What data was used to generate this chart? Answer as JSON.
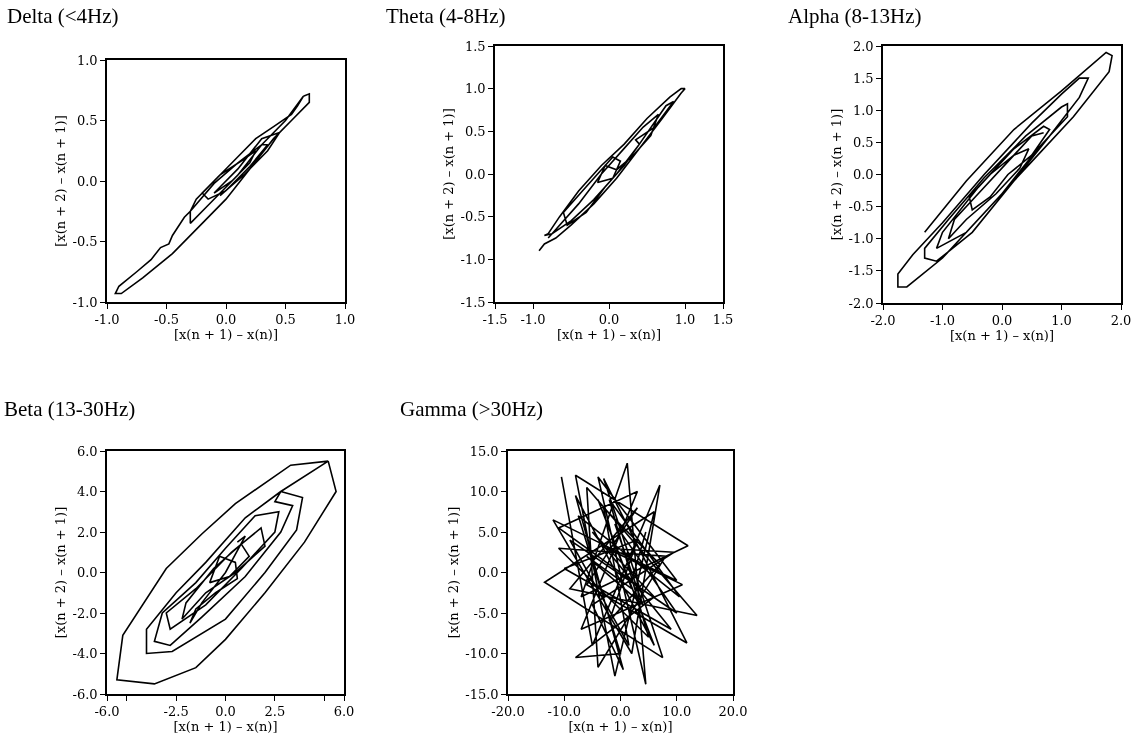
{
  "chart_data": [
    {
      "type": "line",
      "title": "Delta (<4Hz)",
      "xlabel": "[x(n + 1) – x(n)]",
      "ylabel": "[x(n + 2) – x(n + 1)]",
      "color": "#000000",
      "x": [
        0.65,
        0.7,
        0.7,
        0.55,
        0.4,
        0.2,
        0,
        -0.2,
        -0.45,
        -0.7,
        -0.88,
        -0.93,
        -0.9,
        -0.75,
        -0.63,
        -0.55,
        -0.48,
        -0.45,
        -0.35,
        -0.3,
        -0.25,
        -0.1,
        0.1,
        0.25,
        0.4,
        0.55,
        0.6,
        0.65,
        0.5,
        0.3,
        0.1,
        -0.15,
        -0.3,
        -0.3,
        -0.1,
        0.1,
        0.3,
        0.35,
        0.2,
        0,
        -0.15,
        -0.2,
        -0.05,
        0.15,
        0.25,
        0.2,
        0.05,
        -0.1,
        -0.05,
        0.1,
        0.3,
        0.45,
        0.35,
        0.15,
        -0.05
      ],
      "values": [
        0.7,
        0.72,
        0.65,
        0.5,
        0.35,
        0.1,
        -0.15,
        -0.35,
        -0.6,
        -0.8,
        -0.93,
        -0.93,
        -0.87,
        -0.75,
        -0.65,
        -0.55,
        -0.52,
        -0.45,
        -0.3,
        -0.25,
        -0.15,
        0,
        0.2,
        0.35,
        0.45,
        0.55,
        0.62,
        0.7,
        0.5,
        0.3,
        0.05,
        -0.2,
        -0.35,
        -0.25,
        -0.02,
        0.15,
        0.3,
        0.3,
        0.12,
        -0.08,
        -0.15,
        -0.1,
        0.05,
        0.18,
        0.25,
        0.15,
        0,
        -0.1,
        -0.05,
        0.1,
        0.35,
        0.4,
        0.25,
        0.05,
        -0.12
      ],
      "xlim": [
        -1,
        1
      ],
      "ylim": [
        -1,
        1
      ],
      "xticks": [
        {
          "value": -1,
          "label": "-1.0"
        },
        {
          "value": -0.5,
          "label": "-0.5"
        },
        {
          "value": 0,
          "label": "0.0"
        },
        {
          "value": 0.5,
          "label": "0.5"
        },
        {
          "value": 1,
          "label": "1.0"
        }
      ],
      "yticks": [
        {
          "value": -1,
          "label": "-1.0"
        },
        {
          "value": -0.5,
          "label": "-0.5"
        },
        {
          "value": 0,
          "label": "0.0"
        },
        {
          "value": 0.5,
          "label": "0.5"
        },
        {
          "value": 1,
          "label": "1.0"
        }
      ]
    },
    {
      "type": "line",
      "title": "Theta (4-8Hz)",
      "xlabel": "[x(n + 1) – x(n)]",
      "ylabel": "[x(n + 2) – x(n + 1)]",
      "color": "#000000",
      "x": [
        -0.92,
        -0.85,
        -0.7,
        -0.5,
        -0.2,
        0.1,
        0.4,
        0.7,
        0.95,
        1.0,
        0.95,
        0.8,
        0.5,
        0.2,
        -0.1,
        -0.4,
        -0.65,
        -0.8,
        -0.85,
        -0.75,
        -0.5,
        -0.2,
        0.1,
        0.4,
        0.75,
        0.85,
        0.6,
        0.35,
        0.4,
        0.2,
        -0.05,
        -0.3,
        -0.55,
        -0.6,
        -0.35,
        -0.1,
        0.05,
        0.15,
        0.05,
        -0.15,
        -0.05,
        0.1,
        0.3,
        0.55,
        0.65,
        0.45,
        0.2,
        -0.1,
        -0.4,
        -0.7,
        -0.8
      ],
      "values": [
        -0.9,
        -0.82,
        -0.75,
        -0.6,
        -0.35,
        -0.05,
        0.3,
        0.65,
        0.95,
        1.0,
        1.0,
        0.9,
        0.65,
        0.35,
        0.1,
        -0.2,
        -0.5,
        -0.7,
        -0.72,
        -0.7,
        -0.55,
        -0.3,
        0,
        0.35,
        0.8,
        0.85,
        0.55,
        0.4,
        0.35,
        0.1,
        -0.15,
        -0.45,
        -0.6,
        -0.45,
        -0.2,
        0.05,
        0.2,
        0.15,
        -0.05,
        -0.1,
        0.1,
        0.05,
        0.2,
        0.45,
        0.7,
        0.55,
        0.3,
        0,
        -0.35,
        -0.65,
        -0.75
      ],
      "xlim": [
        -1.5,
        1.5
      ],
      "ylim": [
        -1.5,
        1.5
      ],
      "xticks": [
        {
          "value": -1.5,
          "label": "-1.5"
        },
        {
          "value": -1,
          "label": "-1.0"
        },
        {
          "value": 0,
          "label": "0.0"
        },
        {
          "value": 1,
          "label": "1.0"
        },
        {
          "value": 1.5,
          "label": "1.5"
        }
      ],
      "yticks": [
        {
          "value": -1.5,
          "label": "-1.5"
        },
        {
          "value": -1,
          "label": "-1.0"
        },
        {
          "value": -0.5,
          "label": "-0.5"
        },
        {
          "value": 0,
          "label": "0.0"
        },
        {
          "value": 0.5,
          "label": "0.5"
        },
        {
          "value": 1,
          "label": "1.0"
        },
        {
          "value": 1.5,
          "label": "1.5"
        }
      ]
    },
    {
      "type": "line",
      "title": "Alpha (8-13Hz)",
      "xlabel": "[x(n + 1) – x(n)]",
      "ylabel": "[x(n + 2) – x(n + 1)]",
      "color": "#000000",
      "x": [
        -1.3,
        -0.6,
        0.2,
        1.0,
        1.75,
        1.85,
        1.8,
        1.2,
        0.5,
        -0.3,
        -1.0,
        -1.6,
        -1.75,
        -1.75,
        -1.5,
        -1.0,
        -0.3,
        0.5,
        1.0,
        1.3,
        1.45,
        1.3,
        0.8,
        0.2,
        -0.5,
        -1.1,
        -1.3,
        -1.3,
        -0.9,
        -0.3,
        0.4,
        1.0,
        1.1,
        1.1,
        0.6,
        0.0,
        -0.6,
        -1.1,
        -1.0,
        -0.4,
        0.2,
        0.7,
        0.8,
        0.5,
        0.1,
        -0.2,
        -0.5,
        -0.55,
        -0.2,
        0.2,
        0.45,
        0.3,
        -0.1,
        -0.6,
        -0.9,
        -0.8,
        -0.4,
        0.1,
        0.5,
        0.7
      ],
      "values": [
        -0.9,
        -0.1,
        0.7,
        1.3,
        1.9,
        1.85,
        1.6,
        0.9,
        0.2,
        -0.6,
        -1.3,
        -1.75,
        -1.75,
        -1.55,
        -1.25,
        -0.75,
        0.0,
        0.8,
        1.25,
        1.5,
        1.5,
        1.2,
        0.6,
        -0.1,
        -0.9,
        -1.35,
        -1.3,
        -1.15,
        -0.7,
        -0.05,
        0.6,
        1.05,
        1.1,
        0.9,
        0.4,
        -0.3,
        -0.9,
        -1.15,
        -0.9,
        -0.2,
        0.4,
        0.75,
        0.7,
        0.3,
        0.0,
        -0.35,
        -0.55,
        -0.35,
        0.0,
        0.3,
        0.4,
        0.1,
        -0.3,
        -0.7,
        -1.0,
        -0.7,
        -0.3,
        0.2,
        0.6,
        0.65
      ],
      "xlim": [
        -2,
        2
      ],
      "ylim": [
        -2,
        2
      ],
      "xticks": [
        {
          "value": -2,
          "label": "-2.0"
        },
        {
          "value": -1,
          "label": "-1.0"
        },
        {
          "value": 0,
          "label": "0.0"
        },
        {
          "value": 1,
          "label": "1.0"
        },
        {
          "value": 2,
          "label": "2.0"
        }
      ],
      "yticks": [
        {
          "value": -2,
          "label": "-2.0"
        },
        {
          "value": -1.5,
          "label": "-1.5"
        },
        {
          "value": -1,
          "label": "-1.0"
        },
        {
          "value": -0.5,
          "label": "-0.5"
        },
        {
          "value": 0,
          "label": "0.0"
        },
        {
          "value": 0.5,
          "label": "0.5"
        },
        {
          "value": 1,
          "label": "1.0"
        },
        {
          "value": 1.5,
          "label": "1.5"
        },
        {
          "value": 2,
          "label": "2.0"
        }
      ]
    },
    {
      "type": "line",
      "title": "Beta (13-30Hz)",
      "xlabel": "[x(n + 1) – x(n)]",
      "ylabel": "[x(n + 2) – x(n + 1)]",
      "color": "#000000",
      "x": [
        5.2,
        5.6,
        4.0,
        2,
        0,
        -1.5,
        -3.6,
        -5.5,
        -5.2,
        -3,
        -1.2,
        0.5,
        3.3,
        5.2,
        2.8,
        3.9,
        3.6,
        2.0,
        0,
        -2.7,
        -4.0,
        -4.0,
        -2.5,
        -1.0,
        1.0,
        2.8,
        2.5,
        3.4,
        2.8,
        1.0,
        -1.2,
        -2.8,
        -3.6,
        -3.2,
        -1.5,
        0,
        1.5,
        2.7,
        2.5,
        0.8,
        -1.0,
        -2.8,
        -3.0,
        -1.5,
        0.3,
        1.8,
        2.0,
        0.5,
        -1.0,
        -2.2,
        -2.0,
        -0.6,
        0.8,
        1.2,
        0.2,
        -0.8,
        -0.3,
        0.5,
        0.6,
        -0.5,
        -1.5,
        -1.8,
        -1.2,
        0,
        1.0,
        0.6
      ],
      "values": [
        5.5,
        4.0,
        1.5,
        -1,
        -3.3,
        -4.7,
        -5.5,
        -5.3,
        -3.1,
        0.2,
        1.9,
        3.4,
        5.3,
        5.5,
        4.0,
        3.7,
        2.1,
        0.0,
        -2.3,
        -3.9,
        -4.0,
        -2.8,
        -1.0,
        0.5,
        2.7,
        4.0,
        3.5,
        3.3,
        2.0,
        -0.2,
        -2.2,
        -3.6,
        -3.4,
        -2.0,
        -0.5,
        1.2,
        2.8,
        3.0,
        2.0,
        0.2,
        -1.6,
        -2.8,
        -2.0,
        -0.8,
        1.0,
        2.2,
        1.3,
        0.0,
        -1.0,
        -2.3,
        -1.5,
        0.2,
        1.4,
        0.8,
        -0.2,
        -0.5,
        0.8,
        0.5,
        -0.3,
        -1.0,
        -1.8,
        -2.5,
        -1.5,
        0,
        1.8,
        1.5
      ],
      "xlim": [
        -6,
        6
      ],
      "ylim": [
        -6,
        6
      ],
      "xticks": [
        {
          "value": -6,
          "label": "-6.0"
        },
        {
          "value": -5,
          "label": null
        },
        {
          "value": -2.5,
          "label": "-2.5"
        },
        {
          "value": 0,
          "label": "0.0"
        },
        {
          "value": 2.5,
          "label": "2.5"
        },
        {
          "value": 5,
          "label": null
        },
        {
          "value": 6,
          "label": "6.0"
        }
      ],
      "yticks": [
        {
          "value": -6,
          "label": "-6.0"
        },
        {
          "value": -4,
          "label": "-4.0"
        },
        {
          "value": -2,
          "label": "-2.0"
        },
        {
          "value": 0,
          "label": "0.0"
        },
        {
          "value": 2,
          "label": "2.0"
        },
        {
          "value": 4,
          "label": "4.0"
        },
        {
          "value": 6,
          "label": "6.0"
        }
      ]
    },
    {
      "type": "line",
      "title": "Gamma (>30Hz)",
      "xlabel": "[x(n + 1) – x(n)]",
      "ylabel": "[x(n + 2) – x(n + 1)]",
      "color": "#000000",
      "x": [
        -10.5,
        -5,
        7,
        2,
        -12,
        10,
        -4,
        4.5,
        1.2,
        -7,
        12,
        -8,
        -1,
        6,
        -13.5,
        7.5,
        -3,
        11.8,
        -6,
        3,
        -9,
        13.6,
        -6,
        -4,
        8,
        -11,
        5,
        -2,
        10.5,
        -7.5,
        0,
        -8,
        6,
        -5,
        9,
        -10,
        3,
        -2,
        7,
        -3,
        1.5,
        -9,
        10,
        -1,
        4,
        -6,
        2,
        -4,
        6,
        -8,
        0.5,
        -5,
        9.5,
        -2.5,
        11,
        -7,
        3,
        -11,
        2,
        4.5
      ],
      "values": [
        11.8,
        -9,
        10.8,
        -10,
        6.5,
        -1,
        11.8,
        -13.8,
        13.5,
        -3,
        3.3,
        12,
        -12.8,
        7.5,
        -1.2,
        -10.5,
        11.6,
        -8.7,
        -1.5,
        8,
        -2,
        -5.3,
        10.5,
        -11.7,
        2,
        3,
        -8,
        9,
        -3,
        7,
        -10,
        -10.5,
        -3,
        5,
        -7,
        0.5,
        4,
        -6,
        1,
        8,
        -9,
        4,
        -5,
        6,
        -4,
        2,
        -2,
        9,
        -9,
        9.5,
        -12,
        -4,
        2.5,
        3,
        -1.5,
        -7,
        10,
        5.5,
        -1,
        5
      ],
      "xlim": [
        -20,
        20
      ],
      "ylim": [
        -15,
        15
      ],
      "xticks": [
        {
          "value": -20,
          "label": "-20.0"
        },
        {
          "value": -10,
          "label": "-10.0"
        },
        {
          "value": 0,
          "label": "0.0"
        },
        {
          "value": 10,
          "label": "10.0"
        },
        {
          "value": 20,
          "label": "20.0"
        }
      ],
      "yticks": [
        {
          "value": -15,
          "label": "-15.0"
        },
        {
          "value": -10,
          "label": "-10.0"
        },
        {
          "value": -5,
          "label": "-5.0"
        },
        {
          "value": 0,
          "label": "0.0"
        },
        {
          "value": 5,
          "label": "5.0"
        },
        {
          "value": 10,
          "label": "10.0"
        },
        {
          "value": 15,
          "label": "15.0"
        }
      ]
    }
  ]
}
